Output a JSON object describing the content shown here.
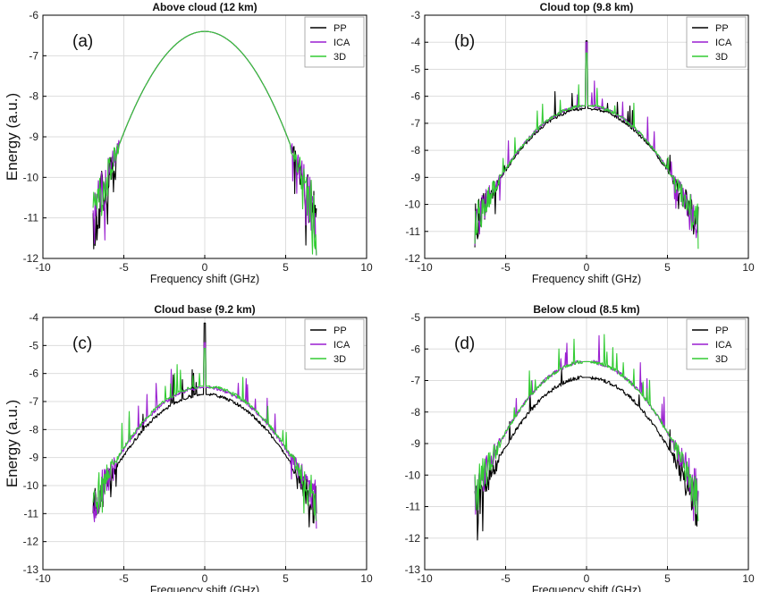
{
  "chart_data": [
    {
      "type": "line",
      "panel_label": "(a)",
      "title": "Above cloud (12 km)",
      "xlabel": "Frequency shift (GHz)",
      "ylabel": "Energy (a.u.)",
      "xlim": [
        -10,
        10
      ],
      "ylim": [
        -12,
        -6
      ],
      "xticks": [
        "-10",
        "-5",
        "0",
        "5",
        "10"
      ],
      "yticks": [
        "-12",
        "-11",
        "-10",
        "-9",
        "-8",
        "-7",
        "-6"
      ],
      "grid": true,
      "legend_position": "top-right",
      "series": [
        {
          "name": "PP",
          "color": "#000000",
          "x_range": [
            -6.9,
            6.9
          ],
          "peak": -6.4,
          "curvature": 0.1,
          "central_spike": -6.4
        },
        {
          "name": "ICA",
          "color": "#9a1fd0",
          "x_range": [
            -6.9,
            6.9
          ],
          "peak": -6.4,
          "curvature": 0.1,
          "central_spike": -6.4
        },
        {
          "name": "3D",
          "color": "#33cc33",
          "x_range": [
            -6.9,
            6.9
          ],
          "peak": -6.4,
          "curvature": 0.1,
          "central_spike": -6.4
        }
      ]
    },
    {
      "type": "line",
      "panel_label": "(b)",
      "title": "Cloud top (9.8 km)",
      "xlabel": "Frequency shift (GHz)",
      "ylabel": "",
      "xlim": [
        -10,
        10
      ],
      "ylim": [
        -12,
        -3
      ],
      "xticks": [
        "-10",
        "-5",
        "0",
        "5",
        "10"
      ],
      "yticks": [
        "-12",
        "-11",
        "-10",
        "-9",
        "-8",
        "-7",
        "-6",
        "-5",
        "-4",
        "-3"
      ],
      "grid": true,
      "legend_position": "top-right",
      "series": [
        {
          "name": "PP",
          "color": "#000000",
          "x_range": [
            -6.9,
            6.9
          ],
          "peak": -6.45,
          "curvature": 0.092,
          "central_spike": -3.95
        },
        {
          "name": "ICA",
          "color": "#9a1fd0",
          "x_range": [
            -6.9,
            6.9
          ],
          "peak": -6.35,
          "curvature": 0.094,
          "central_spike": -4.0
        },
        {
          "name": "3D",
          "color": "#33cc33",
          "x_range": [
            -6.9,
            6.9
          ],
          "peak": -6.35,
          "curvature": 0.094,
          "central_spike": -4.4
        }
      ]
    },
    {
      "type": "line",
      "panel_label": "(c)",
      "title": "Cloud base (9.2 km)",
      "xlabel": "Frequency shift (GHz)",
      "ylabel": "Energy (a.u.)",
      "xlim": [
        -10,
        10
      ],
      "ylim": [
        -13,
        -4
      ],
      "xticks": [
        "-10",
        "-5",
        "0",
        "5",
        "10"
      ],
      "yticks": [
        "-13",
        "-12",
        "-11",
        "-10",
        "-9",
        "-8",
        "-7",
        "-6",
        "-5",
        "-4"
      ],
      "grid": true,
      "legend_position": "top-right",
      "series": [
        {
          "name": "PP",
          "color": "#000000",
          "x_range": [
            -6.9,
            6.9
          ],
          "peak": -6.75,
          "curvature": 0.087,
          "central_spike": -4.2
        },
        {
          "name": "ICA",
          "color": "#9a1fd0",
          "x_range": [
            -6.9,
            6.9
          ],
          "peak": -6.5,
          "curvature": 0.088,
          "central_spike": -4.9
        },
        {
          "name": "3D",
          "color": "#33cc33",
          "x_range": [
            -6.9,
            6.9
          ],
          "peak": -6.45,
          "curvature": 0.088,
          "central_spike": -5.1
        }
      ]
    },
    {
      "type": "line",
      "panel_label": "(d)",
      "title": "Below cloud (8.5 km)",
      "xlabel": "Frequency shift (GHz)",
      "ylabel": "",
      "xlim": [
        -10,
        10
      ],
      "ylim": [
        -13,
        -5
      ],
      "xticks": [
        "-10",
        "-5",
        "0",
        "5",
        "10"
      ],
      "yticks": [
        "-13",
        "-12",
        "-11",
        "-10",
        "-9",
        "-8",
        "-7",
        "-6",
        "-5"
      ],
      "grid": true,
      "legend_position": "top-right",
      "series": [
        {
          "name": "PP",
          "color": "#000000",
          "x_range": [
            -6.9,
            6.9
          ],
          "peak": -6.9,
          "curvature": 0.088,
          "central_spike": -6.9
        },
        {
          "name": "ICA",
          "color": "#9a1fd0",
          "x_range": [
            -6.9,
            6.9
          ],
          "peak": -6.4,
          "curvature": 0.09,
          "central_spike": -6.4
        },
        {
          "name": "3D",
          "color": "#33cc33",
          "x_range": [
            -6.9,
            6.9
          ],
          "peak": -6.4,
          "curvature": 0.09,
          "central_spike": -6.4
        }
      ]
    }
  ]
}
